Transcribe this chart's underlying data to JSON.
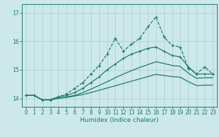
{
  "xlabel": "Humidex (Indice chaleur)",
  "background_color": "#cce8e8",
  "grid_color": "#aacccc",
  "line_color": "#1a7a6a",
  "xlim": [
    -0.5,
    23.5
  ],
  "ylim": [
    13.7,
    17.3
  ],
  "yticks": [
    14,
    15,
    16,
    17
  ],
  "xticks": [
    0,
    1,
    2,
    3,
    4,
    5,
    6,
    7,
    8,
    9,
    10,
    11,
    12,
    13,
    14,
    15,
    16,
    17,
    18,
    19,
    20,
    21,
    22,
    23
  ],
  "line1_x": [
    0,
    1,
    2,
    3,
    4,
    5,
    6,
    7,
    8,
    9,
    10,
    11,
    12,
    13,
    14,
    15,
    16,
    17,
    18,
    19,
    20,
    21,
    22,
    23
  ],
  "line1_y": [
    14.1,
    14.1,
    13.95,
    13.95,
    14.05,
    14.15,
    14.35,
    14.55,
    14.85,
    15.15,
    15.55,
    16.1,
    15.65,
    15.9,
    16.1,
    16.5,
    16.85,
    16.15,
    15.85,
    15.8,
    15.05,
    14.85,
    15.1,
    14.85
  ],
  "line2_x": [
    0,
    1,
    2,
    3,
    4,
    5,
    6,
    7,
    8,
    9,
    10,
    11,
    12,
    13,
    14,
    15,
    16,
    17,
    18,
    19,
    20,
    21,
    22,
    23
  ],
  "line2_y": [
    14.1,
    14.1,
    13.95,
    13.95,
    14.05,
    14.1,
    14.2,
    14.35,
    14.55,
    14.75,
    15.0,
    15.2,
    15.4,
    15.55,
    15.65,
    15.75,
    15.8,
    15.65,
    15.5,
    15.45,
    15.1,
    14.85,
    14.85,
    14.85
  ],
  "line3_x": [
    0,
    1,
    2,
    3,
    4,
    5,
    6,
    7,
    8,
    9,
    10,
    11,
    12,
    13,
    14,
    15,
    16,
    17,
    18,
    19,
    20,
    21,
    22,
    23
  ],
  "line3_y": [
    14.1,
    14.1,
    13.95,
    13.95,
    14.0,
    14.05,
    14.1,
    14.2,
    14.32,
    14.45,
    14.58,
    14.72,
    14.85,
    14.97,
    15.08,
    15.18,
    15.28,
    15.22,
    15.15,
    15.12,
    14.88,
    14.7,
    14.72,
    14.72
  ],
  "line4_x": [
    0,
    1,
    2,
    3,
    4,
    5,
    6,
    7,
    8,
    9,
    10,
    11,
    12,
    13,
    14,
    15,
    16,
    17,
    18,
    19,
    20,
    21,
    22,
    23
  ],
  "line4_y": [
    14.1,
    14.1,
    13.95,
    13.95,
    14.0,
    14.03,
    14.08,
    14.13,
    14.2,
    14.28,
    14.36,
    14.44,
    14.52,
    14.6,
    14.68,
    14.76,
    14.84,
    14.8,
    14.76,
    14.74,
    14.58,
    14.45,
    14.46,
    14.46
  ]
}
